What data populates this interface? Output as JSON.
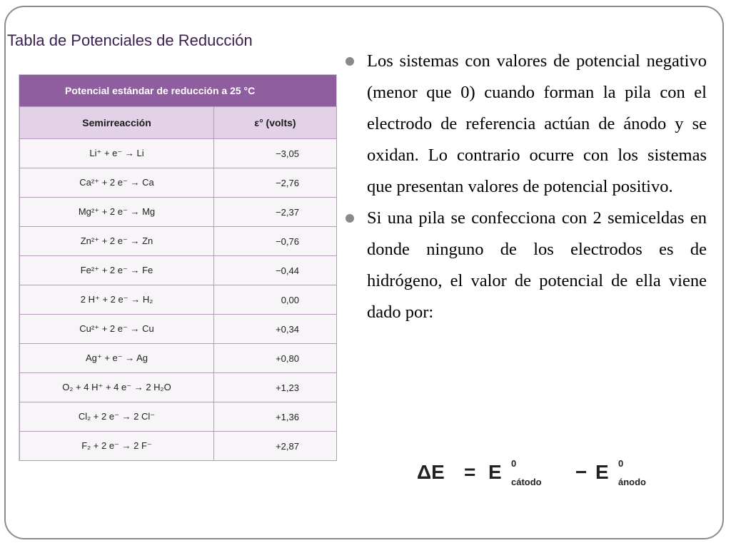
{
  "slide": {
    "title": "Tabla de Potenciales de Reducción"
  },
  "table": {
    "header": "Potencial estándar de reducción a 25 °C",
    "columns": [
      "Semirreacción",
      "ε° (volts)"
    ],
    "rows": [
      {
        "reaction": "Li⁺ + e⁻ → Li",
        "value": "−3,05"
      },
      {
        "reaction": "Ca²⁺ + 2 e⁻ → Ca",
        "value": "−2,76"
      },
      {
        "reaction": "Mg²⁺ + 2 e⁻ → Mg",
        "value": "−2,37"
      },
      {
        "reaction": "Zn²⁺ + 2 e⁻ → Zn",
        "value": "−0,76"
      },
      {
        "reaction": "Fe²⁺ + 2 e⁻ → Fe",
        "value": "−0,44"
      },
      {
        "reaction": "2 H⁺ + 2 e⁻ → H₂",
        "value": "0,00"
      },
      {
        "reaction": "Cu²⁺ + 2 e⁻ → Cu",
        "value": "+0,34"
      },
      {
        "reaction": "Ag⁺ + e⁻ → Ag",
        "value": "+0,80"
      },
      {
        "reaction": "O₂ + 4 H⁺ + 4 e⁻ → 2 H₂O",
        "value": "+1,23"
      },
      {
        "reaction": "Cl₂ + 2 e⁻ → 2 Cl⁻",
        "value": "+1,36"
      },
      {
        "reaction": "F₂ + 2 e⁻ → 2 F⁻",
        "value": "+2,87"
      }
    ]
  },
  "bullets": [
    "Los sistemas con valores de potencial negativo (menor que 0) cuando forman la pila con el electrodo de referencia actúan de ánodo y se oxidan. Lo contrario ocurre con los sistemas que presentan valores de potencial positivo.",
    "Si una pila se confecciona con 2 semiceldas en donde ninguno de los electrodos es de hidrógeno, el valor de potencial de ella viene dado por:"
  ],
  "formula": {
    "lhs": "ΔE",
    "equals": "=",
    "e1": "E",
    "e1_sup": "0",
    "e1_sub": "cátodo",
    "minus": "−",
    "e2": "E",
    "e2_sup": "0",
    "e2_sub": "ánodo"
  }
}
